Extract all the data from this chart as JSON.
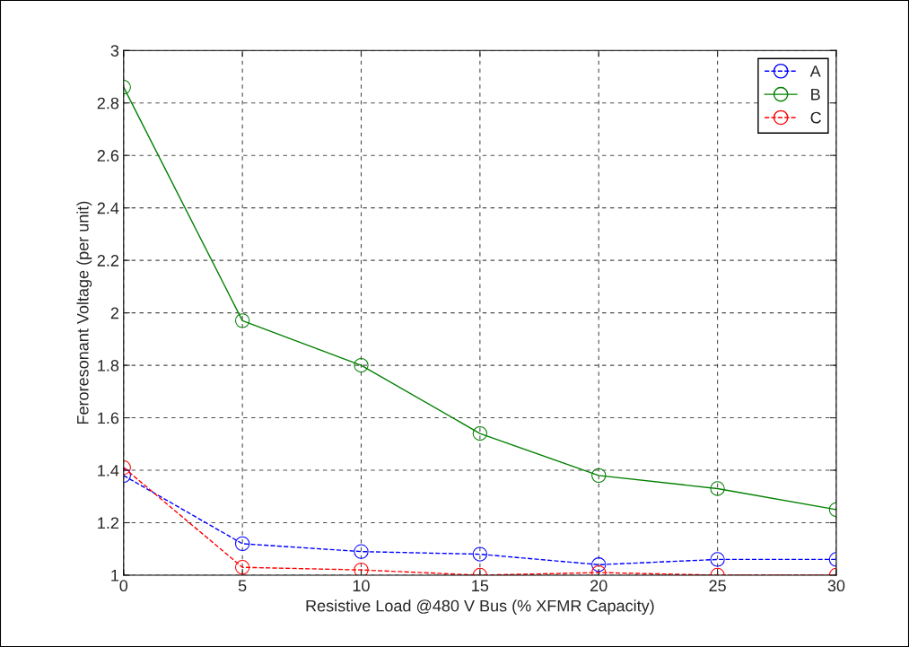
{
  "chart_data": {
    "type": "line",
    "xlabel": "Resistive Load @480 V Bus (% XFMR Capacity)",
    "ylabel": "Feroresonant Voltage (per unit)",
    "x": [
      0,
      5,
      10,
      15,
      20,
      25,
      30
    ],
    "series": [
      {
        "name": "A",
        "color": "#0000ff",
        "line_style": "dashed",
        "values": [
          1.38,
          1.12,
          1.09,
          1.08,
          1.04,
          1.06,
          1.06
        ]
      },
      {
        "name": "B",
        "color": "#008000",
        "line_style": "solid",
        "values": [
          2.86,
          1.97,
          1.8,
          1.54,
          1.38,
          1.33,
          1.25
        ]
      },
      {
        "name": "C",
        "color": "#ff0000",
        "line_style": "dashed",
        "values": [
          1.41,
          1.03,
          1.02,
          1.0,
          1.01,
          1.0,
          1.0
        ]
      }
    ],
    "marker": "circle",
    "xlim": [
      0,
      30
    ],
    "xticks": [
      0,
      5,
      10,
      15,
      20,
      25,
      30
    ],
    "ylim": [
      1,
      3
    ],
    "yticks": [
      1,
      1.2,
      1.4,
      1.6,
      1.8,
      2,
      2.2,
      2.4,
      2.6,
      2.8,
      3
    ],
    "grid": true,
    "legend": "top right"
  }
}
